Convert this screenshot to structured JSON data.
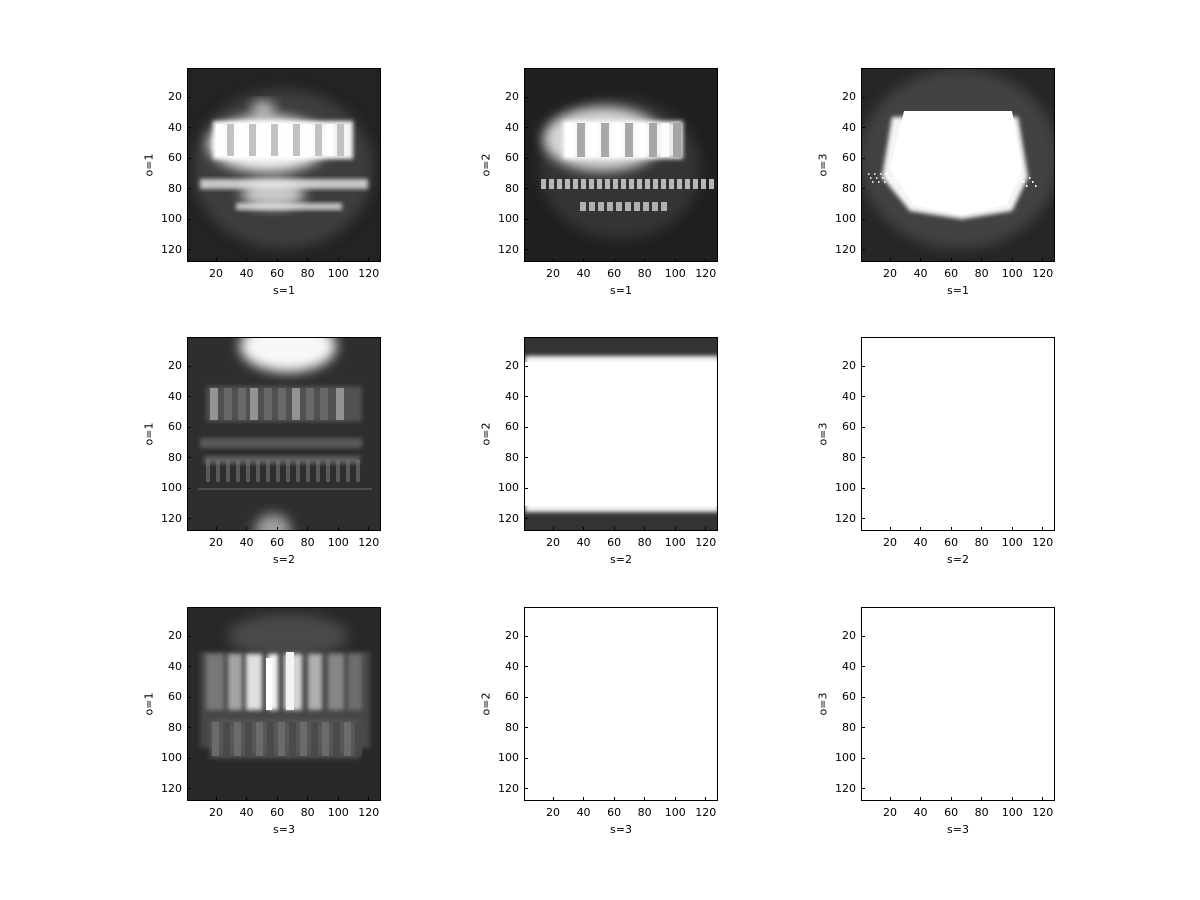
{
  "chart_data": {
    "type": "heatmap",
    "colormap": "grayscale",
    "grid": false,
    "rows": 3,
    "cols": 3,
    "panels": [
      {
        "xlabel": "s=1",
        "ylabel": "o=1",
        "xlim": [
          1,
          128
        ],
        "ylim": [
          128,
          1
        ],
        "xticks": [
          20,
          40,
          60,
          80,
          100,
          120
        ],
        "yticks": [
          20,
          40,
          60,
          80,
          100,
          120
        ],
        "content": "text-blobs-bright"
      },
      {
        "xlabel": "s=1",
        "ylabel": "o=2",
        "xlim": [
          1,
          128
        ],
        "ylim": [
          128,
          1
        ],
        "xticks": [
          20,
          40,
          60,
          80,
          100,
          120
        ],
        "yticks": [
          20,
          40,
          60,
          80,
          100,
          120
        ],
        "content": "text-blobs-sharp"
      },
      {
        "xlabel": "s=1",
        "ylabel": "o=3",
        "xlim": [
          1,
          128
        ],
        "ylim": [
          128,
          1
        ],
        "xticks": [
          20,
          40,
          60,
          80,
          100,
          120
        ],
        "yticks": [
          20,
          40,
          60,
          80,
          100,
          120
        ],
        "content": "saturated-blob"
      },
      {
        "xlabel": "s=2",
        "ylabel": "o=1",
        "xlim": [
          1,
          128
        ],
        "ylim": [
          128,
          1
        ],
        "xticks": [
          20,
          40,
          60,
          80,
          100,
          120
        ],
        "yticks": [
          20,
          40,
          60,
          80,
          100,
          120
        ],
        "content": "text-dim"
      },
      {
        "xlabel": "s=2",
        "ylabel": "o=2",
        "xlim": [
          1,
          128
        ],
        "ylim": [
          128,
          1
        ],
        "xticks": [
          20,
          40,
          60,
          80,
          100,
          120
        ],
        "yticks": [
          20,
          40,
          60,
          80,
          100,
          120
        ],
        "content": "white-band"
      },
      {
        "xlabel": "s=2",
        "ylabel": "o=3",
        "xlim": [
          1,
          128
        ],
        "ylim": [
          128,
          1
        ],
        "xticks": [
          20,
          40,
          60,
          80,
          100,
          120
        ],
        "yticks": [
          20,
          40,
          60,
          80,
          100,
          120
        ],
        "content": "all-white"
      },
      {
        "xlabel": "s=3",
        "ylabel": "o=1",
        "xlim": [
          1,
          128
        ],
        "ylim": [
          128,
          1
        ],
        "xticks": [
          20,
          40,
          60,
          80,
          100,
          120
        ],
        "yticks": [
          20,
          40,
          60,
          80,
          100,
          120
        ],
        "content": "bars"
      },
      {
        "xlabel": "s=3",
        "ylabel": "o=2",
        "xlim": [
          1,
          128
        ],
        "ylim": [
          128,
          1
        ],
        "xticks": [
          20,
          40,
          60,
          80,
          100,
          120
        ],
        "yticks": [
          20,
          40,
          60,
          80,
          100,
          120
        ],
        "content": "all-white"
      },
      {
        "xlabel": "s=3",
        "ylabel": "o=3",
        "xlim": [
          1,
          128
        ],
        "ylim": [
          128,
          1
        ],
        "xticks": [
          20,
          40,
          60,
          80,
          100,
          120
        ],
        "yticks": [
          20,
          40,
          60,
          80,
          100,
          120
        ],
        "content": "all-white"
      }
    ]
  }
}
